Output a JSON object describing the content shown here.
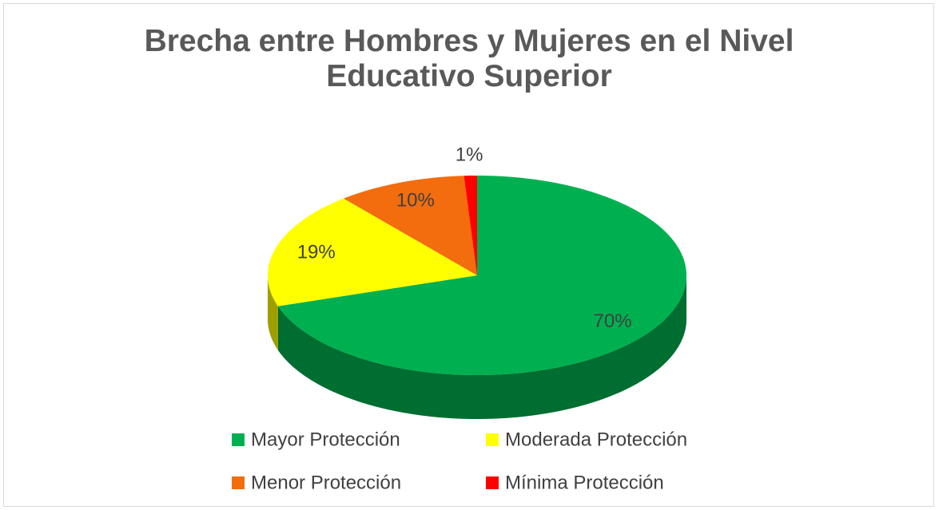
{
  "chart_data": {
    "type": "pie3d",
    "title": "Brecha entre Hombres y Mujeres en el Nivel Educativo Superior",
    "categories": [
      "Mayor Protección",
      "Moderada Protección",
      "Menor Protección",
      "Mínima Protección"
    ],
    "values": [
      70,
      19,
      10,
      1
    ],
    "value_labels": [
      "70%",
      "19%",
      "10%",
      "1%"
    ],
    "colors": [
      "#00b050",
      "#ffff00",
      "#f36c0e",
      "#ff0000"
    ],
    "legend": "bottom"
  }
}
